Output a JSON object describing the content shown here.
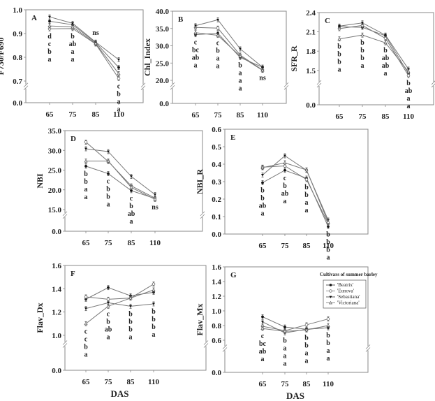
{
  "legend": {
    "title": "Cultivars of summer barley",
    "items": [
      "'Beatrix'",
      "'Eunova'",
      "'Sebastiana'",
      "'Victoriana'"
    ]
  },
  "colors": {
    "line": "#777777",
    "frame": "#888888",
    "text": "#222222"
  },
  "chart_data": [
    {
      "type": "line",
      "panel": "A",
      "ylabel": "F730/F690",
      "xlabel": "",
      "categories": [
        "65",
        "75",
        "85",
        "110"
      ],
      "yticks": [
        "0.0",
        "0.7",
        "0.8",
        "0.9",
        "1.0"
      ],
      "ylim": [
        0.7,
        1.0
      ],
      "axis_break": true,
      "series": [
        {
          "name": "'Beatrix'",
          "marker": "filled-circle",
          "values": [
            0.952,
            0.937,
            0.862,
            0.757
          ]
        },
        {
          "name": "'Eunova'",
          "marker": "open-circle",
          "values": [
            0.92,
            0.921,
            0.856,
            0.711
          ]
        },
        {
          "name": "'Sebastiana'",
          "marker": "filled-triangle",
          "values": [
            0.97,
            0.943,
            0.864,
            0.79
          ]
        },
        {
          "name": "'Victoriana'",
          "marker": "open-triangle",
          "values": [
            0.932,
            0.928,
            0.858,
            0.731
          ]
        }
      ],
      "letters": [
        [
          "d",
          "c",
          "b",
          "a"
        ],
        [
          "b",
          "ab",
          "a",
          "a"
        ],
        [
          "ns"
        ],
        [
          "c",
          "b",
          "a",
          "a"
        ]
      ]
    },
    {
      "type": "line",
      "panel": "B",
      "ylabel": "Chl_Index",
      "xlabel": "",
      "categories": [
        "65",
        "75",
        "85",
        "110"
      ],
      "yticks": [
        "0.0",
        "20.0",
        "25.0",
        "30.0",
        "35.0",
        "40.0"
      ],
      "ylim": [
        20,
        40
      ],
      "axis_break": true,
      "series": [
        {
          "name": "'Beatrix'",
          "marker": "filled-circle",
          "values": [
            33.2,
            33.6,
            26.6,
            23.8
          ]
        },
        {
          "name": "'Eunova'",
          "marker": "open-circle",
          "values": [
            35.3,
            35.1,
            27.3,
            23.0
          ]
        },
        {
          "name": "'Sebastiana'",
          "marker": "filled-triangle",
          "values": [
            35.8,
            37.5,
            29.1,
            23.8
          ]
        },
        {
          "name": "'Victoriana'",
          "marker": "open-triangle",
          "values": [
            33.8,
            33.0,
            27.0,
            22.9
          ]
        }
      ],
      "letters": [
        [
          "c",
          "bc",
          "ab",
          "a"
        ],
        [
          "c",
          "b",
          "a",
          "a"
        ],
        [
          "b",
          "a",
          "a",
          "a"
        ],
        [
          "ns"
        ]
      ]
    },
    {
      "type": "line",
      "panel": "C",
      "ylabel": "SFR_R",
      "xlabel": "",
      "categories": [
        "65",
        "75",
        "85",
        "110"
      ],
      "yticks": [
        "0.0",
        "1.5",
        "1.8",
        "2.1",
        "2.4"
      ],
      "ylim": [
        1.4,
        2.4
      ],
      "axis_break": true,
      "series": [
        {
          "name": "'Beatrix'",
          "marker": "filled-circle",
          "values": [
            2.18,
            2.17,
            2.04,
            1.45
          ]
        },
        {
          "name": "'Eunova'",
          "marker": "open-circle",
          "values": [
            2.15,
            2.2,
            2.0,
            1.42
          ]
        },
        {
          "name": "'Sebastiana'",
          "marker": "filled-triangle",
          "values": [
            2.19,
            2.24,
            2.05,
            1.52
          ]
        },
        {
          "name": "'Victoriana'",
          "marker": "open-triangle",
          "values": [
            1.99,
            2.05,
            1.93,
            1.48
          ]
        }
      ],
      "letters": [
        [
          "b",
          "b",
          "b",
          "a"
        ],
        [
          "b",
          "b",
          "b",
          "a"
        ],
        [
          "b",
          "ab",
          "ab",
          "a"
        ],
        [
          "b",
          "ab",
          "a",
          "a"
        ]
      ]
    },
    {
      "type": "line",
      "panel": "D",
      "ylabel": "NBI",
      "xlabel": "",
      "categories": [
        "65",
        "75",
        "85",
        "110"
      ],
      "yticks": [
        "0.0",
        "15.0",
        "20.0",
        "25.0",
        "30.0",
        "35.0"
      ],
      "ylim": [
        15,
        35
      ],
      "axis_break": true,
      "series": [
        {
          "name": "'Beatrix'",
          "marker": "filled-circle",
          "values": [
            26.0,
            24.1,
            19.8,
            17.8
          ]
        },
        {
          "name": "'Eunova'",
          "marker": "open-circle",
          "values": [
            32.1,
            27.2,
            21.0,
            17.9
          ]
        },
        {
          "name": "'Sebastiana'",
          "marker": "filled-triangle",
          "values": [
            30.4,
            29.7,
            23.4,
            18.8
          ]
        },
        {
          "name": "'Victoriana'",
          "marker": "open-triangle",
          "values": [
            27.3,
            27.3,
            20.6,
            17.6
          ]
        }
      ],
      "letters": [
        [
          "b",
          "b",
          "a",
          "a"
        ],
        [
          "c",
          "b",
          "b",
          "a"
        ],
        [
          "c",
          "b",
          "ab",
          "a"
        ],
        [
          "ns"
        ]
      ]
    },
    {
      "type": "line",
      "panel": "E",
      "ylabel": "NBI_R",
      "xlabel": "",
      "categories": [
        "65",
        "75",
        "85",
        "110"
      ],
      "yticks": [
        "0.0",
        "0.1",
        "0.2",
        "0.3",
        "0.4",
        "0.5",
        "0.6"
      ],
      "ylim": [
        0,
        0.6
      ],
      "axis_break": false,
      "series": [
        {
          "name": "'Beatrix'",
          "marker": "filled-circle",
          "values": [
            0.294,
            0.365,
            0.32,
            0.043
          ]
        },
        {
          "name": "'Eunova'",
          "marker": "open-circle",
          "values": [
            0.383,
            0.39,
            0.312,
            0.06
          ]
        },
        {
          "name": "'Sebastiana'",
          "marker": "filled-triangle",
          "values": [
            0.338,
            0.448,
            0.365,
            0.08
          ]
        },
        {
          "name": "'Victoriana'",
          "marker": "open-triangle",
          "values": [
            0.38,
            0.408,
            0.367,
            0.068
          ]
        }
      ],
      "letters": [
        [
          "b",
          "b",
          "ab",
          "a"
        ],
        [
          "c",
          "b",
          "ab",
          "a"
        ],
        [
          "b",
          "b",
          "a",
          "a"
        ],
        [
          "b",
          "b",
          "b",
          "a"
        ]
      ]
    },
    {
      "type": "line",
      "panel": "F",
      "ylabel": "Flav_Dx",
      "xlabel": "DAS",
      "categories": [
        "65",
        "75",
        "85",
        "110"
      ],
      "yticks": [
        "0.0",
        "1.0",
        "1.2",
        "1.4",
        "1.6"
      ],
      "ylim": [
        1.0,
        1.6
      ],
      "axis_break": true,
      "series": [
        {
          "name": "'Beatrix'",
          "marker": "filled-circle",
          "values": [
            1.31,
            1.41,
            1.34,
            1.37
          ]
        },
        {
          "name": "'Eunova'",
          "marker": "open-circle",
          "values": [
            1.33,
            1.31,
            1.32,
            1.44
          ]
        },
        {
          "name": "'Sebastiana'",
          "marker": "filled-triangle",
          "values": [
            1.23,
            1.28,
            1.25,
            1.27
          ]
        },
        {
          "name": "'Victoriana'",
          "marker": "open-triangle",
          "values": [
            1.1,
            1.25,
            1.32,
            1.39
          ]
        }
      ],
      "letters": [
        [
          "c",
          "c",
          "b",
          "a"
        ],
        [
          "c",
          "b",
          "ab",
          "a"
        ],
        [
          "b",
          "b",
          "b",
          "a"
        ],
        [
          "b",
          "b",
          "b",
          "a"
        ]
      ]
    },
    {
      "type": "line",
      "panel": "G",
      "ylabel": "Flav_Mx",
      "xlabel": "DAS",
      "categories": [
        "65",
        "75",
        "85",
        "110"
      ],
      "yticks": [
        "0.0",
        "0.6",
        "0.8",
        "1.0",
        "1.2",
        "1.4",
        "1.6"
      ],
      "ylim": [
        0.6,
        1.6
      ],
      "axis_break": true,
      "series": [
        {
          "name": "'Beatrix'",
          "marker": "filled-circle",
          "values": [
            0.92,
            0.78,
            0.75,
            0.77
          ]
        },
        {
          "name": "'Eunova'",
          "marker": "open-circle",
          "values": [
            0.79,
            0.73,
            0.81,
            0.89
          ]
        },
        {
          "name": "'Sebastiana'",
          "marker": "filled-triangle",
          "values": [
            0.85,
            0.7,
            0.75,
            0.77
          ]
        },
        {
          "name": "'Victoriana'",
          "marker": "open-triangle",
          "values": [
            0.76,
            0.72,
            0.74,
            0.8
          ]
        }
      ],
      "letters": [
        [
          "c",
          "bc",
          "ab",
          "a"
        ],
        [
          "b",
          "a",
          "a",
          "a"
        ],
        [
          "b",
          "b",
          "a",
          "a"
        ],
        [
          "b",
          "b",
          "a",
          "a"
        ]
      ],
      "legend": "top-right"
    }
  ]
}
